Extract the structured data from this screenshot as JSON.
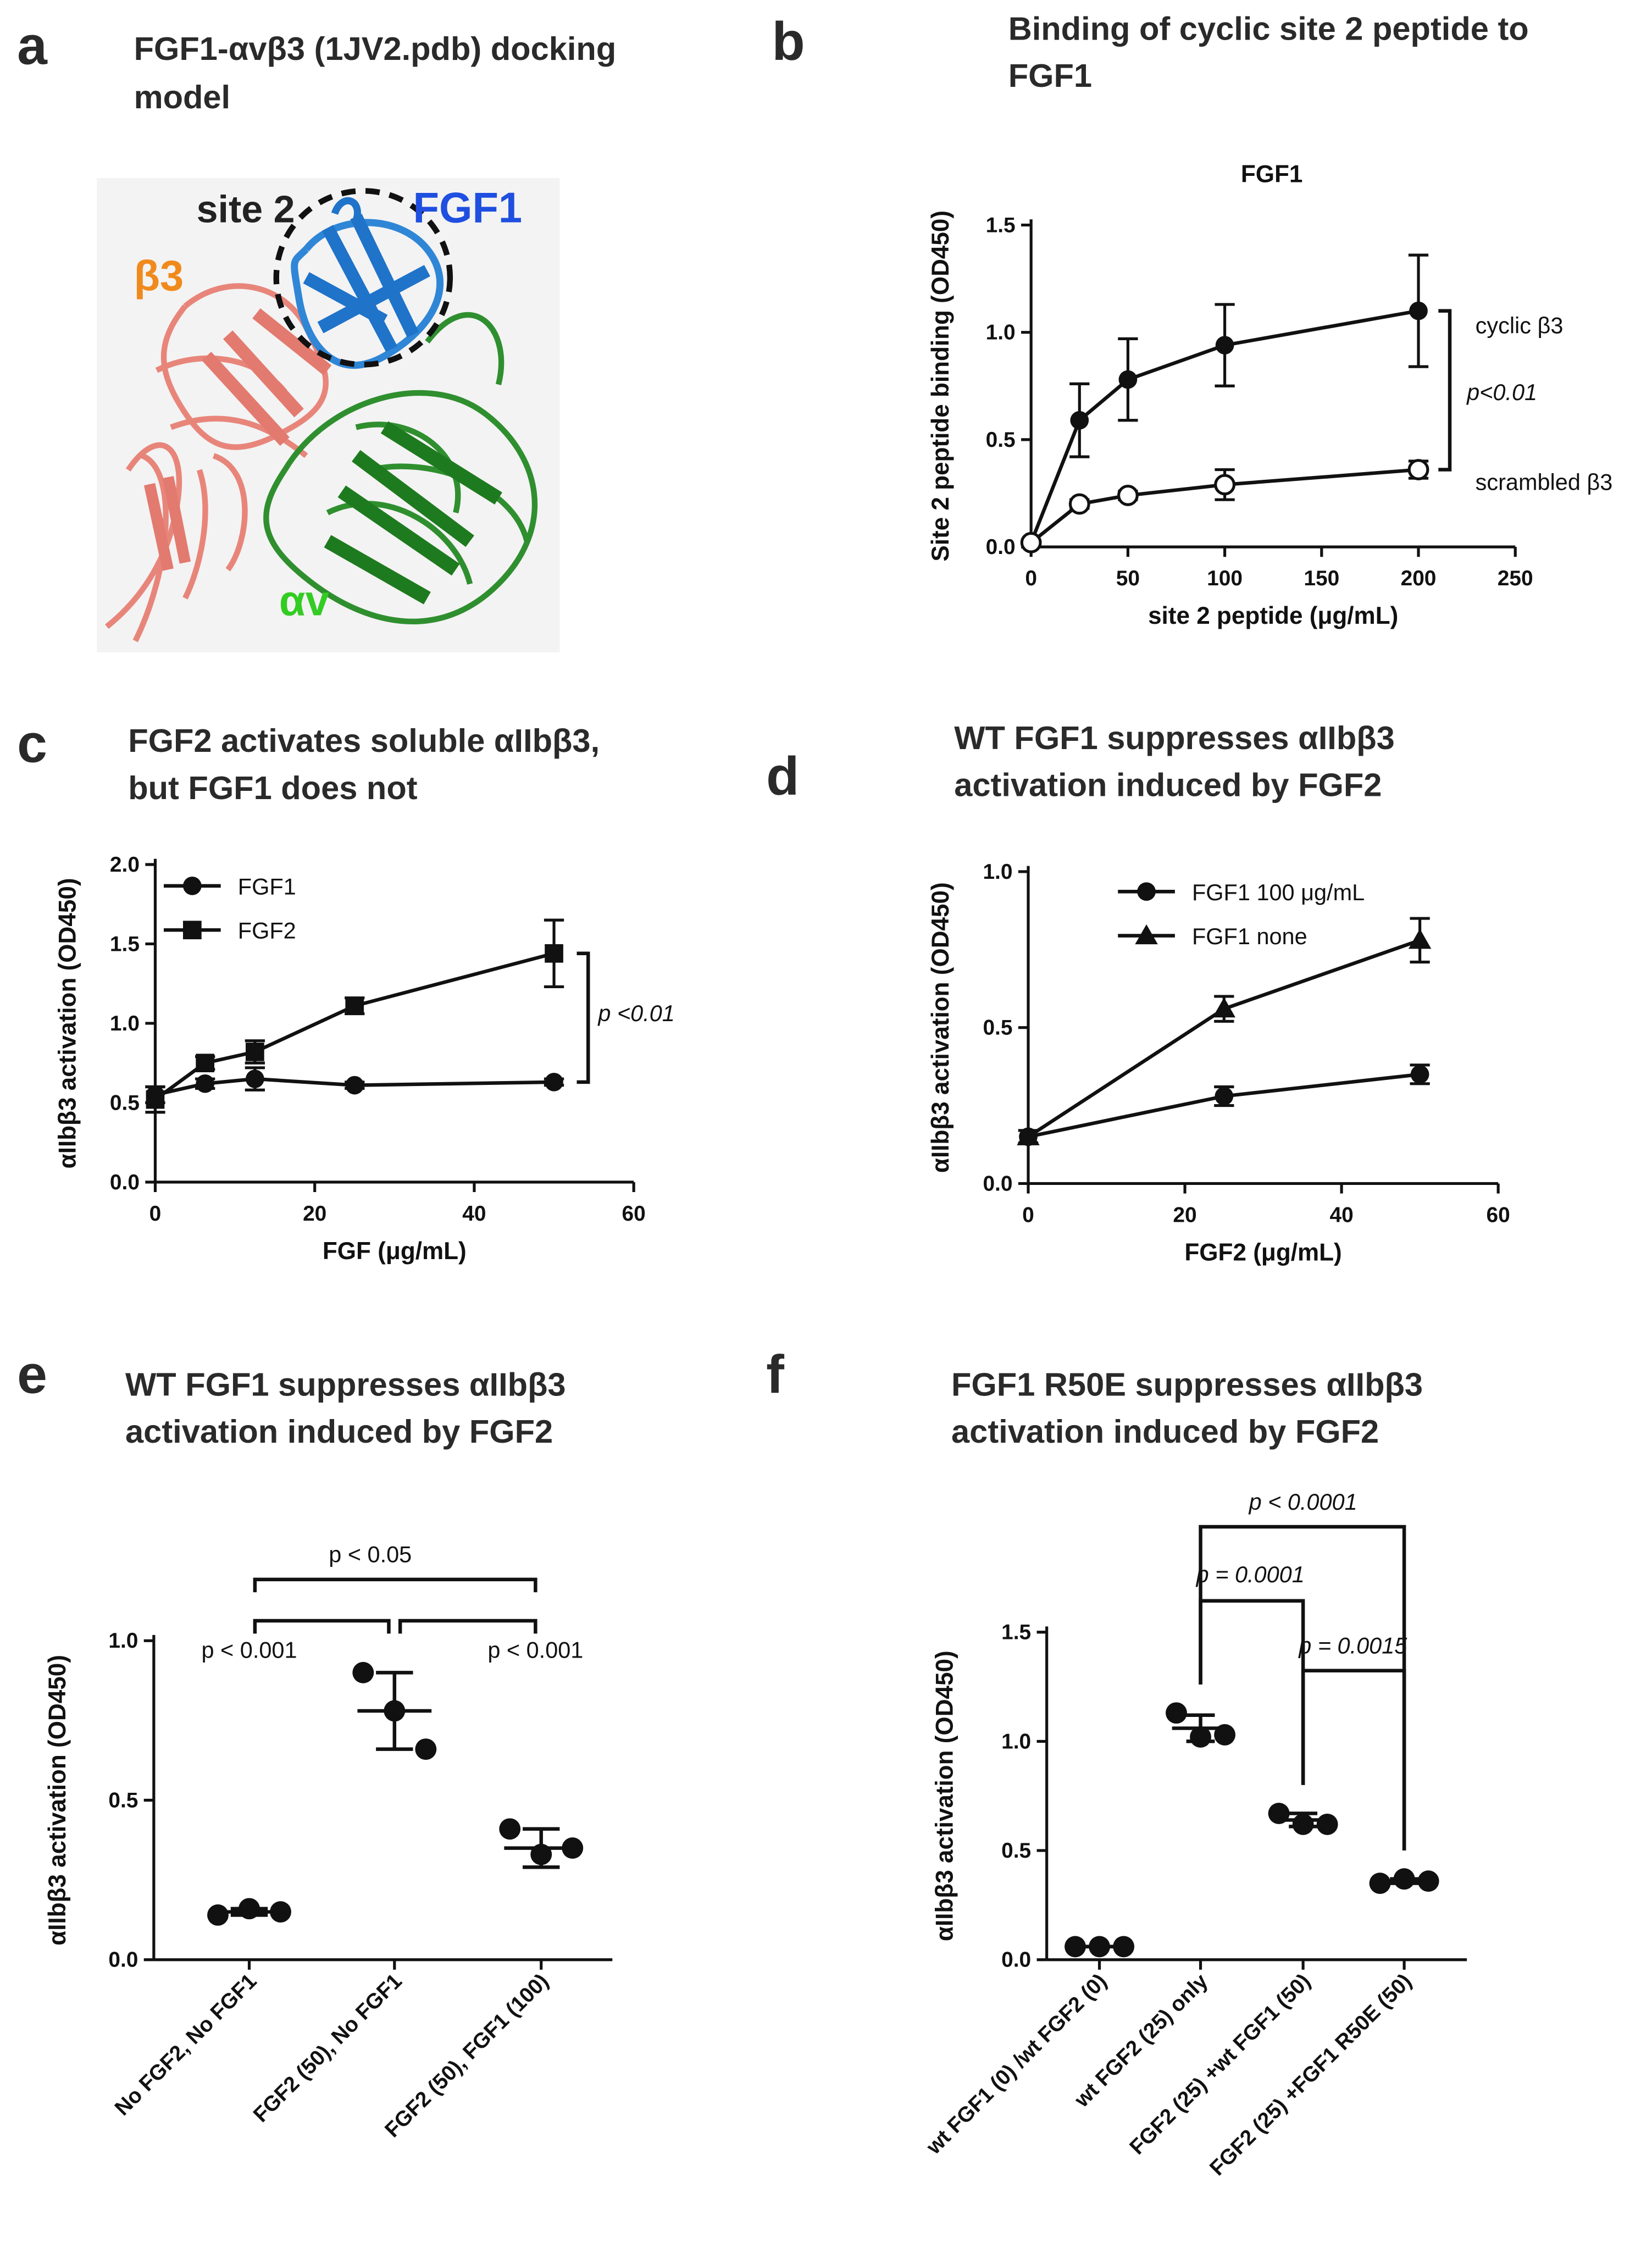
{
  "image_panel": {
    "panel": "a",
    "title": [
      "FGF1-αvβ3 (1JV2.pdb) docking",
      "model"
    ],
    "labels": {
      "site": "site 2",
      "fgf1": "FGF1",
      "beta3": "β3",
      "alphav": "αv"
    }
  },
  "chart_data": [
    {
      "type": "line",
      "panel": "b",
      "title": [
        "Binding of cyclic site 2 peptide to",
        "FGF1"
      ],
      "subtitle": "FGF1",
      "xlabel": "site 2 peptide  (μg/mL)",
      "ylabel": "Site 2 peptide binding  (OD450)",
      "x": [
        0,
        25,
        50,
        100,
        200
      ],
      "xlim": [
        0,
        250
      ],
      "xticks": [
        0,
        50,
        100,
        150,
        200,
        250
      ],
      "ylim": [
        0,
        1.5
      ],
      "yticks": [
        {
          "value": 0,
          "label": "0.0"
        },
        0.5,
        {
          "value": 1,
          "label": "1.0"
        },
        1.5
      ],
      "series": [
        {
          "name": "cyclic β3",
          "marker": "circle",
          "color": "#111111",
          "values": [
            0.02,
            0.59,
            0.78,
            0.94,
            1.1
          ],
          "errors": [
            0,
            0.17,
            0.19,
            0.19,
            0.26
          ]
        },
        {
          "name": "scrambled β3",
          "marker": "open-circle",
          "color": "#111111",
          "values": [
            0.02,
            0.2,
            0.24,
            0.29,
            0.36
          ],
          "errors": [
            0,
            0.02,
            0.02,
            0.07,
            0.04
          ]
        }
      ],
      "legend": "line-ends",
      "annotation": "p<0.01"
    },
    {
      "type": "line",
      "panel": "c",
      "title": [
        "FGF2 activates soluble αIIbβ3,",
        "but FGF1 does not"
      ],
      "xlabel": "FGF (μg/mL)",
      "ylabel": "αIIbβ3 activation (OD450)",
      "x": [
        0,
        6.25,
        12.5,
        25,
        50
      ],
      "xlim": [
        0,
        60
      ],
      "xticks": [
        0,
        20,
        40,
        60
      ],
      "ylim": [
        0,
        2
      ],
      "yticks": [
        {
          "value": 0,
          "label": "0.0"
        },
        0.5,
        {
          "value": 1,
          "label": "1.0"
        },
        1.5,
        {
          "value": 2,
          "label": "2.0"
        }
      ],
      "series": [
        {
          "name": "FGF1",
          "marker": "circle",
          "color": "#111111",
          "values": [
            0.55,
            0.62,
            0.65,
            0.61,
            0.63
          ],
          "errors": [
            0.05,
            0.03,
            0.07,
            0.02,
            0.02
          ]
        },
        {
          "name": "FGF2",
          "marker": "square",
          "color": "#111111",
          "values": [
            0.52,
            0.75,
            0.82,
            1.11,
            1.44
          ],
          "errors": [
            0.08,
            0.04,
            0.07,
            0.05,
            0.21
          ]
        }
      ],
      "legend": "upper left",
      "annotation": "p <0.01"
    },
    {
      "type": "line",
      "panel": "d",
      "title": [
        "WT FGF1 suppresses αIIbβ3",
        "activation induced by FGF2"
      ],
      "xlabel": "FGF2 (μg/mL)",
      "ylabel": "αIIbβ3 activation (OD450)",
      "x": [
        0,
        25,
        50
      ],
      "xlim": [
        0,
        60
      ],
      "xticks": [
        0,
        20,
        40,
        60
      ],
      "ylim": [
        0,
        1
      ],
      "yticks": [
        {
          "value": 0,
          "label": "0.0"
        },
        0.5,
        {
          "value": 1,
          "label": "1.0"
        }
      ],
      "series": [
        {
          "name": "FGF1 100 μg/mL",
          "marker": "circle",
          "color": "#111111",
          "values": [
            0.15,
            0.28,
            0.35
          ],
          "errors": [
            0.02,
            0.03,
            0.03
          ]
        },
        {
          "name": "FGF1 none",
          "marker": "triangle",
          "color": "#111111",
          "values": [
            0.15,
            0.56,
            0.78
          ],
          "errors": [
            0.02,
            0.04,
            0.07
          ]
        }
      ],
      "legend": "upper left"
    },
    {
      "type": "dot",
      "panel": "e",
      "title": [
        "WT FGF1 suppresses αIIbβ3",
        "activation induced by FGF2"
      ],
      "ylabel": "αIIbβ3 activation (OD450)",
      "categories": [
        "No FGF2, No FGF1",
        "FGF2 (50), No FGF1",
        "FGF2 (50), FGF1 (100)"
      ],
      "points": [
        [
          0.14,
          0.16,
          0.15
        ],
        [
          0.9,
          0.78,
          0.66
        ],
        [
          0.41,
          0.33,
          0.35
        ]
      ],
      "means": [
        0.15,
        0.78,
        0.35
      ],
      "sd": [
        0.01,
        0.12,
        0.06
      ],
      "ylim": [
        0,
        1
      ],
      "yticks": [
        {
          "value": 0,
          "label": "0.0"
        },
        0.5,
        {
          "value": 1,
          "label": "1.0"
        }
      ],
      "color": "#111111",
      "annotations": [
        "p < 0.001",
        "p < 0.001",
        "p < 0.05"
      ]
    },
    {
      "type": "dot",
      "panel": "f",
      "title": [
        "FGF1 R50E suppresses αIIbβ3",
        "activation induced by FGF2"
      ],
      "ylabel": "αIIbβ3 activation (OD450)",
      "categories": [
        "wt FGF1 (0) /wt FGF2 (0)",
        "wt FGF2 (25) only",
        "FGF2 (25) +wt FGF1 (50)",
        "FGF2 (25) +FGF1 R50E (50)"
      ],
      "points": [
        [
          0.06,
          0.06,
          0.06
        ],
        [
          1.13,
          1.02,
          1.03
        ],
        [
          0.67,
          0.62,
          0.62
        ],
        [
          0.35,
          0.37,
          0.36
        ]
      ],
      "means": [
        0.06,
        1.06,
        0.64,
        0.36
      ],
      "sd": [
        0,
        0.06,
        0.03,
        0.01
      ],
      "ylim": [
        0,
        1.5
      ],
      "yticks": [
        {
          "value": 0,
          "label": "0.0"
        },
        0.5,
        {
          "value": 1,
          "label": "1.0"
        },
        1.5
      ],
      "color": "#111111",
      "annotations": [
        "p < 0.0001",
        "p = 0.0001",
        "p = 0.0015"
      ]
    }
  ]
}
